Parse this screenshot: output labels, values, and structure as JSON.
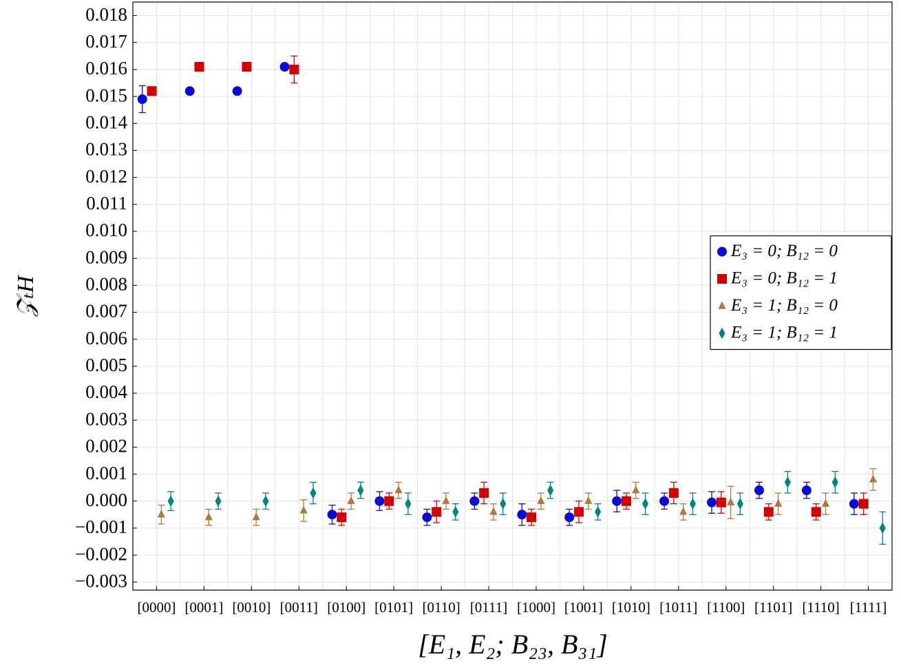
{
  "chart_data": {
    "type": "errorbar-scatter",
    "x_label": "[E₁, E₂; B₂₃, B₃₁]",
    "y_label": "𝒵ₜH",
    "categories": [
      "[0000]",
      "[0001]",
      "[0010]",
      "[0011]",
      "[0100]",
      "[0101]",
      "[0110]",
      "[0111]",
      "[1000]",
      "[1001]",
      "[1010]",
      "[1011]",
      "[1100]",
      "[1101]",
      "[1110]",
      "[1111]"
    ],
    "ylim": [
      -0.0033,
      0.0185
    ],
    "yticks": [
      {
        "value": -0.003,
        "label": "−0.003"
      },
      {
        "value": -0.002,
        "label": "−0.002"
      },
      {
        "value": -0.001,
        "label": "−0.001"
      },
      {
        "value": 0,
        "label": "0.000"
      },
      0.001,
      0.002,
      0.003,
      0.004,
      0.005,
      0.006,
      0.007,
      0.008,
      0.009,
      {
        "value": 0.01,
        "label": "0.010"
      },
      0.011,
      0.012,
      0.013,
      0.014,
      0.015,
      0.016,
      0.017,
      0.018
    ],
    "grid": true,
    "legend": "right",
    "series": [
      {
        "name": "E₃ = 0; B₁₂ = 0",
        "color": "#0a0ad6",
        "marker": "circle",
        "values": [
          0.0149,
          0.0152,
          0.0152,
          0.0161,
          -0.0005,
          0,
          -0.0006,
          0,
          -0.0005,
          -0.0006,
          0,
          0,
          -5e-05,
          0.0004,
          0.0004,
          -0.0001
        ],
        "errors": [
          0.0005,
          0.0001,
          0.0001,
          0.0001,
          0.00035,
          0.00035,
          0.0003,
          0.0003,
          0.0004,
          0.0003,
          0.0004,
          0.0003,
          0.0004,
          0.0003,
          0.0003,
          0.0004
        ]
      },
      {
        "name": "E₃ = 0; B₁₂ = 1",
        "color": "#d40000",
        "marker": "square",
        "values": [
          0.0152,
          0.0161,
          0.0161,
          0.016,
          -0.0006,
          0,
          -0.0004,
          0.0003,
          -0.0006,
          -0.0004,
          0,
          0.0003,
          -5e-05,
          -0.0004,
          -0.0004,
          -0.0001
        ],
        "errors": [
          0.0001,
          0.0001,
          0.0001,
          0.0005,
          0.0003,
          0.0003,
          0.0004,
          0.0004,
          0.0003,
          0.0004,
          0.0003,
          0.0004,
          0.0004,
          0.0003,
          0.0003,
          0.0004
        ]
      },
      {
        "name": "E₃ = 1; B₁₂ = 0",
        "color": "#b0783c",
        "marker": "triangle",
        "values": [
          -0.0005,
          -0.0006,
          -0.0006,
          -0.00035,
          0,
          0.0004,
          0,
          -0.0004,
          0,
          0,
          0.0004,
          -0.0004,
          -5e-05,
          -0.0001,
          -0.0001,
          0.0008
        ],
        "errors": [
          0.00035,
          0.0003,
          0.0003,
          0.0004,
          0.0003,
          0.0003,
          0.0003,
          0.0003,
          0.0003,
          0.0003,
          0.0003,
          0.0003,
          0.0006,
          0.0004,
          0.0004,
          0.0004
        ]
      },
      {
        "name": "E₃ = 1; B₁₂ = 1",
        "color": "#00857a",
        "marker": "diamond",
        "values": [
          0,
          0,
          0,
          0.0003,
          0.0004,
          -0.0001,
          -0.0004,
          -0.0001,
          0.0004,
          -0.0004,
          -0.0001,
          -0.0001,
          -0.0001,
          0.0007,
          0.0007,
          -0.001
        ],
        "errors": [
          0.00035,
          0.0003,
          0.0003,
          0.0004,
          0.0003,
          0.0004,
          0.0003,
          0.0004,
          0.0003,
          0.0003,
          0.0004,
          0.0004,
          0.0004,
          0.0004,
          0.0004,
          0.0006
        ]
      }
    ]
  }
}
